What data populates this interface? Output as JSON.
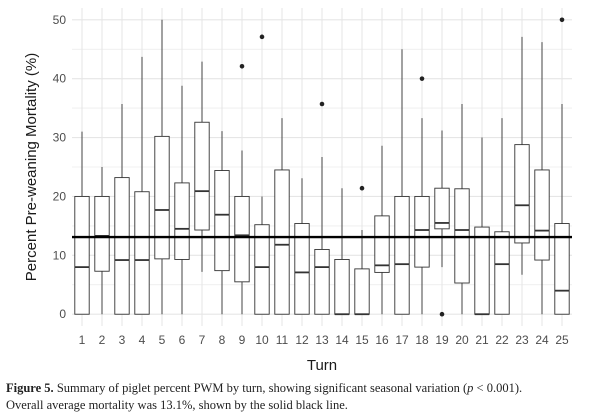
{
  "chart_data": {
    "type": "box",
    "xlabel": "Turn",
    "ylabel": "Percent Pre-weaning Mortality (%)",
    "ylim": [
      -2,
      52
    ],
    "yticks": [
      0,
      10,
      20,
      30,
      40,
      50
    ],
    "grid": true,
    "reference_line": {
      "value": 13.1
    },
    "colors": {
      "panel_bg": "#ffffff",
      "grid": "#e6e6e6",
      "box_stroke": "#333333",
      "ref_line": "#000000",
      "outlier": "#222222"
    },
    "boxes": [
      {
        "label": "1",
        "min": 0,
        "q1": 0,
        "median": 8,
        "q3": 20,
        "max": 31,
        "outliers": []
      },
      {
        "label": "2",
        "min": 0,
        "q1": 7.3,
        "median": 13.3,
        "q3": 20,
        "max": 25,
        "outliers": []
      },
      {
        "label": "3",
        "min": 0,
        "q1": 0,
        "median": 9.2,
        "q3": 23.2,
        "max": 35.7,
        "outliers": []
      },
      {
        "label": "4",
        "min": 0,
        "q1": 0,
        "median": 9.2,
        "q3": 20.8,
        "max": 43.7,
        "outliers": []
      },
      {
        "label": "5",
        "min": 0,
        "q1": 9.4,
        "median": 17.7,
        "q3": 30.2,
        "max": 50,
        "outliers": []
      },
      {
        "label": "6",
        "min": 0,
        "q1": 9.3,
        "median": 14.5,
        "q3": 22.3,
        "max": 38.8,
        "outliers": []
      },
      {
        "label": "7",
        "min": 7.2,
        "q1": 14.3,
        "median": 20.9,
        "q3": 32.6,
        "max": 42.9,
        "outliers": []
      },
      {
        "label": "8",
        "min": 0,
        "q1": 7.4,
        "median": 16.9,
        "q3": 24.4,
        "max": 31.1,
        "outliers": []
      },
      {
        "label": "9",
        "min": 0,
        "q1": 5.5,
        "median": 13.4,
        "q3": 20,
        "max": 27.8,
        "outliers": [
          42.1
        ]
      },
      {
        "label": "10",
        "min": 0,
        "q1": 0,
        "median": 8,
        "q3": 15.2,
        "max": 20,
        "outliers": [
          47.1
        ]
      },
      {
        "label": "11",
        "min": 0,
        "q1": 0,
        "median": 11.8,
        "q3": 24.5,
        "max": 33.3,
        "outliers": []
      },
      {
        "label": "12",
        "min": 0,
        "q1": 0,
        "median": 7.1,
        "q3": 15.4,
        "max": 23.1,
        "outliers": []
      },
      {
        "label": "13",
        "min": 0,
        "q1": 0,
        "median": 8,
        "q3": 11,
        "max": 26.7,
        "outliers": [
          35.7
        ]
      },
      {
        "label": "14",
        "min": 0,
        "q1": 0,
        "median": 0,
        "q3": 9.3,
        "max": 21.4,
        "outliers": []
      },
      {
        "label": "15",
        "min": 0,
        "q1": 0,
        "median": 0,
        "q3": 7.7,
        "max": 14.3,
        "outliers": [
          21.4
        ]
      },
      {
        "label": "16",
        "min": 0,
        "q1": 7.1,
        "median": 8.3,
        "q3": 16.7,
        "max": 28.6,
        "outliers": []
      },
      {
        "label": "17",
        "min": 0,
        "q1": 0,
        "median": 8.5,
        "q3": 20,
        "max": 45,
        "outliers": []
      },
      {
        "label": "18",
        "min": 0,
        "q1": 8,
        "median": 14.3,
        "q3": 20,
        "max": 33.3,
        "outliers": [
          40
        ]
      },
      {
        "label": "19",
        "min": 8,
        "q1": 14.5,
        "median": 15.5,
        "q3": 21.4,
        "max": 31.2,
        "outliers": [
          0
        ]
      },
      {
        "label": "20",
        "min": 0,
        "q1": 5.3,
        "median": 14.3,
        "q3": 21.3,
        "max": 35.7,
        "outliers": []
      },
      {
        "label": "21",
        "min": 0,
        "q1": 0,
        "median": 0,
        "q3": 14.8,
        "max": 30,
        "outliers": []
      },
      {
        "label": "22",
        "min": 0,
        "q1": 0,
        "median": 8.5,
        "q3": 14,
        "max": 33.3,
        "outliers": []
      },
      {
        "label": "23",
        "min": 6.7,
        "q1": 12.1,
        "median": 18.5,
        "q3": 28.8,
        "max": 47.1,
        "outliers": []
      },
      {
        "label": "24",
        "min": 0,
        "q1": 9.2,
        "median": 14.2,
        "q3": 24.5,
        "max": 46.2,
        "outliers": []
      },
      {
        "label": "25",
        "min": 0,
        "q1": 0,
        "median": 4,
        "q3": 15.4,
        "max": 35.7,
        "outliers": [
          50
        ]
      }
    ]
  },
  "caption": {
    "label": "Figure 5.",
    "line1": " Summary of piglet percent PWM by turn, showing significant seasonal variation (",
    "p_symbol": "p",
    "line1_end": " < 0.001).",
    "line2": "Overall average mortality was 13.1%, shown by the solid black line."
  }
}
